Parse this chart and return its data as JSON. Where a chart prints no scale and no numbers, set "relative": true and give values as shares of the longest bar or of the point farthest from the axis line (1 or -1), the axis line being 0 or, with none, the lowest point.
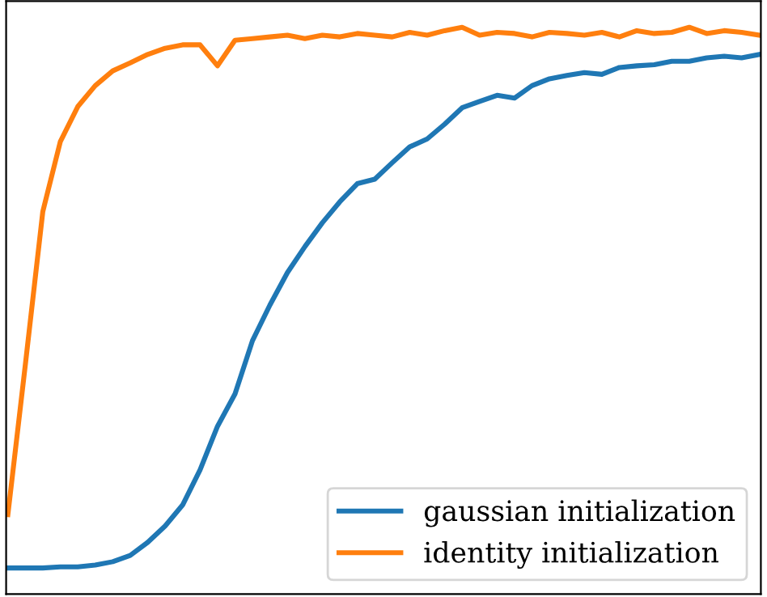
{
  "chart_data": {
    "type": "line",
    "relative": true,
    "legend": "bottom right",
    "marker": "none",
    "line_style": "solid",
    "categories": [
      null,
      null,
      null,
      null,
      null,
      null,
      null,
      null,
      null,
      null,
      null,
      null,
      null,
      null,
      null,
      null,
      null,
      null,
      null,
      null,
      null,
      null,
      null,
      null,
      null,
      null,
      null,
      null,
      null,
      null,
      null,
      null,
      null,
      null,
      null,
      null,
      null,
      null,
      null,
      null,
      null,
      null,
      null,
      null
    ],
    "series": [
      {
        "name": "gaussian initialization",
        "color": "#1f77b4",
        "values": [
          0.046,
          0.046,
          0.046,
          0.048,
          0.048,
          0.051,
          0.057,
          0.068,
          0.091,
          0.12,
          0.157,
          0.219,
          0.296,
          0.353,
          0.447,
          0.51,
          0.567,
          0.613,
          0.655,
          0.692,
          0.724,
          0.732,
          0.761,
          0.789,
          0.803,
          0.829,
          0.858,
          0.869,
          0.88,
          0.875,
          0.897,
          0.909,
          0.915,
          0.92,
          0.917,
          0.929,
          0.932,
          0.934,
          0.94,
          0.94,
          0.946,
          0.949,
          0.946,
          0.952
        ]
      },
      {
        "name": "identity initialization",
        "color": "#ff7f0e",
        "values": [
          0.14,
          0.405,
          0.675,
          0.798,
          0.86,
          0.897,
          0.923,
          0.937,
          0.952,
          0.963,
          0.969,
          0.969,
          0.932,
          0.977,
          0.98,
          0.983,
          0.986,
          0.98,
          0.986,
          0.983,
          0.989,
          0.986,
          0.983,
          0.991,
          0.986,
          0.994,
          1.0,
          0.986,
          0.991,
          0.989,
          0.983,
          0.991,
          0.989,
          0.986,
          0.991,
          0.983,
          0.994,
          0.989,
          0.991,
          1.0,
          0.989,
          0.994,
          0.991,
          0.986
        ]
      }
    ]
  }
}
